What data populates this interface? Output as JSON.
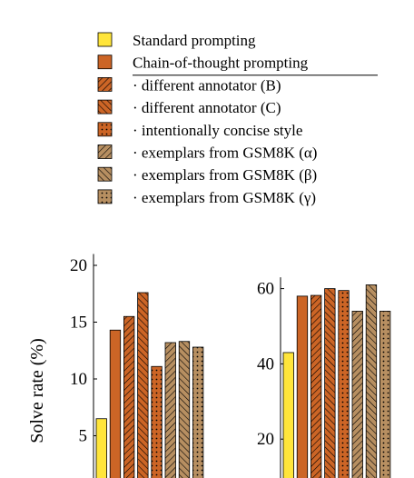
{
  "legend": {
    "entries": [
      {
        "label": "Standard prompting",
        "color": "#FFE53B",
        "pattern": "solid"
      },
      {
        "label": "Chain-of-thought prompting",
        "color": "#CC6526",
        "pattern": "solid"
      },
      {
        "label": "· different annotator (B)",
        "color": "#CC6526",
        "pattern": "hatch-ne"
      },
      {
        "label": "· different annotator (C)",
        "color": "#CC6526",
        "pattern": "hatch-nw"
      },
      {
        "label": "· intentionally concise style",
        "color": "#CC6526",
        "pattern": "dots"
      },
      {
        "label": "· exemplars from GSM8K (α)",
        "color": "#B78F61",
        "pattern": "hatch-ne"
      },
      {
        "label": "· exemplars from GSM8K (β)",
        "color": "#B78F61",
        "pattern": "hatch-nw"
      },
      {
        "label": "· exemplars from GSM8K (γ)",
        "color": "#B78F61",
        "pattern": "dots"
      }
    ]
  },
  "ylabel": "Solve rate (%)",
  "chart_data": [
    {
      "type": "bar",
      "title": "",
      "xlabel": "",
      "ylabel": "Solve rate (%)",
      "categories": [
        "Standard prompting",
        "Chain-of-thought prompting",
        "· different annotator (B)",
        "· different annotator (C)",
        "· intentionally concise style",
        "· exemplars from GSM8K (α)",
        "· exemplars from GSM8K (β)",
        "· exemplars from GSM8K (γ)"
      ],
      "values": [
        6.5,
        14.3,
        15.5,
        17.6,
        11.1,
        13.2,
        13.3,
        12.8
      ],
      "yticks": [
        5,
        10,
        15,
        20
      ],
      "ylim": [
        0,
        21
      ],
      "grid": false,
      "legend": "top"
    },
    {
      "type": "bar",
      "title": "",
      "xlabel": "",
      "ylabel": "",
      "categories": [
        "Standard prompting",
        "Chain-of-thought prompting",
        "· different annotator (B)",
        "· different annotator (C)",
        "· intentionally concise style",
        "· exemplars from GSM8K (α)",
        "· exemplars from GSM8K (β)",
        "· exemplars from GSM8K (γ)"
      ],
      "values": [
        43.0,
        58.0,
        58.2,
        60.0,
        59.5,
        54.0,
        61.0,
        54.0
      ],
      "yticks": [
        20,
        40,
        60
      ],
      "ylim": [
        0,
        63
      ],
      "grid": false,
      "legend": "top"
    }
  ]
}
